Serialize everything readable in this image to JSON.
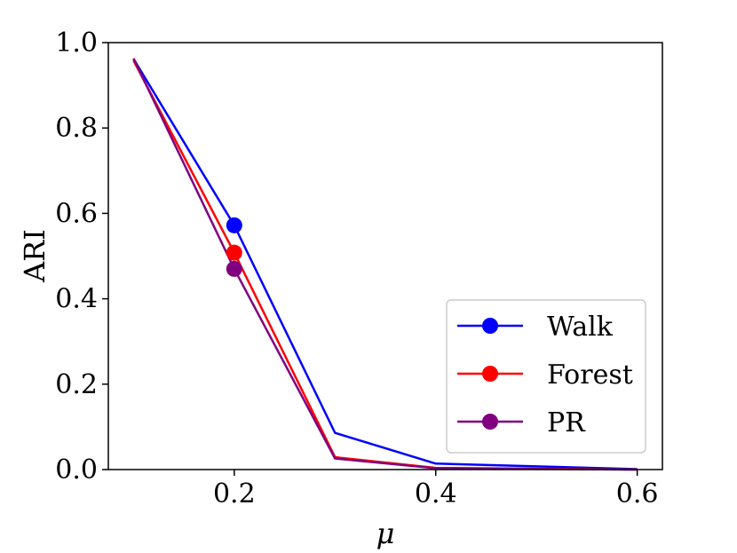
{
  "chart_data": {
    "type": "line",
    "title": "",
    "xlabel": "μ",
    "ylabel": "ARI",
    "xlim": [
      0.075,
      0.625
    ],
    "ylim": [
      0.0,
      1.0
    ],
    "xticks": [
      0.2,
      0.4,
      0.6
    ],
    "xtick_labels": [
      "0.2",
      "0.4",
      "0.6"
    ],
    "yticks": [
      0.0,
      0.2,
      0.4,
      0.6,
      0.8,
      1.0
    ],
    "ytick_labels": [
      "0.0",
      "0.2",
      "0.4",
      "0.6",
      "0.8",
      "1.0"
    ],
    "legend_position": "lower-right",
    "x": [
      0.1,
      0.2,
      0.3,
      0.4,
      0.6
    ],
    "marker_x": 0.2,
    "series": [
      {
        "name": "Walk",
        "color": "#0000ff",
        "values": [
          0.962,
          0.572,
          0.086,
          0.014,
          0.001
        ],
        "marker_value": 0.572
      },
      {
        "name": "Forest",
        "color": "#ff0000",
        "values": [
          0.958,
          0.508,
          0.029,
          0.004,
          0.0
        ],
        "marker_value": 0.508
      },
      {
        "name": "PR",
        "color": "#800080",
        "values": [
          0.963,
          0.47,
          0.026,
          0.003,
          0.0
        ],
        "marker_value": 0.47
      }
    ]
  }
}
